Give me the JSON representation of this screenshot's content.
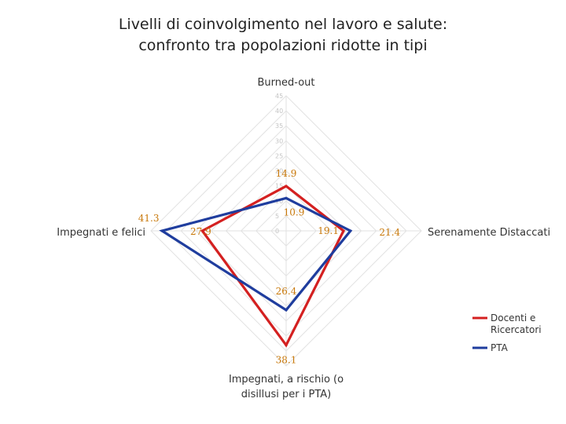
{
  "chart_data": {
    "type": "radar",
    "title": [
      "Livelli di coinvolgimento nel lavoro e salute:",
      "confronto tra popolazioni ridotte in tipi"
    ],
    "axes": [
      {
        "label": [
          "Burned-out"
        ]
      },
      {
        "label": [
          "Serenamente Distaccati"
        ]
      },
      {
        "label": [
          "Impegnati, a rischio (o",
          "disillusi per i PTA)"
        ]
      },
      {
        "label": [
          "Impegnati e felici"
        ]
      }
    ],
    "rlim": [
      0,
      45
    ],
    "ticks": [
      0,
      5,
      10,
      15,
      20,
      25,
      30,
      35,
      40,
      45
    ],
    "tick_labels": [
      "0",
      "5",
      "10",
      "15",
      "20",
      "25",
      "30",
      "35",
      "40",
      "45"
    ],
    "grid": true,
    "legend_position": "right",
    "series": [
      {
        "name": "Docenti e Ricercatori",
        "legend_lines": [
          "Docenti e",
          "Ricercatori"
        ],
        "color": "#d42020",
        "values": [
          14.9,
          19.1,
          38.1,
          27.9
        ],
        "labels": [
          "14.9",
          "19.1",
          "38.1",
          "27.9"
        ]
      },
      {
        "name": "PTA",
        "legend_lines": [
          "PTA"
        ],
        "color": "#1f3d9e",
        "values": [
          10.9,
          21.4,
          26.4,
          41.3
        ],
        "labels": [
          "10.9",
          "21.4",
          "26.4",
          "41.3"
        ]
      }
    ],
    "data_label_color": "#c8780a"
  }
}
